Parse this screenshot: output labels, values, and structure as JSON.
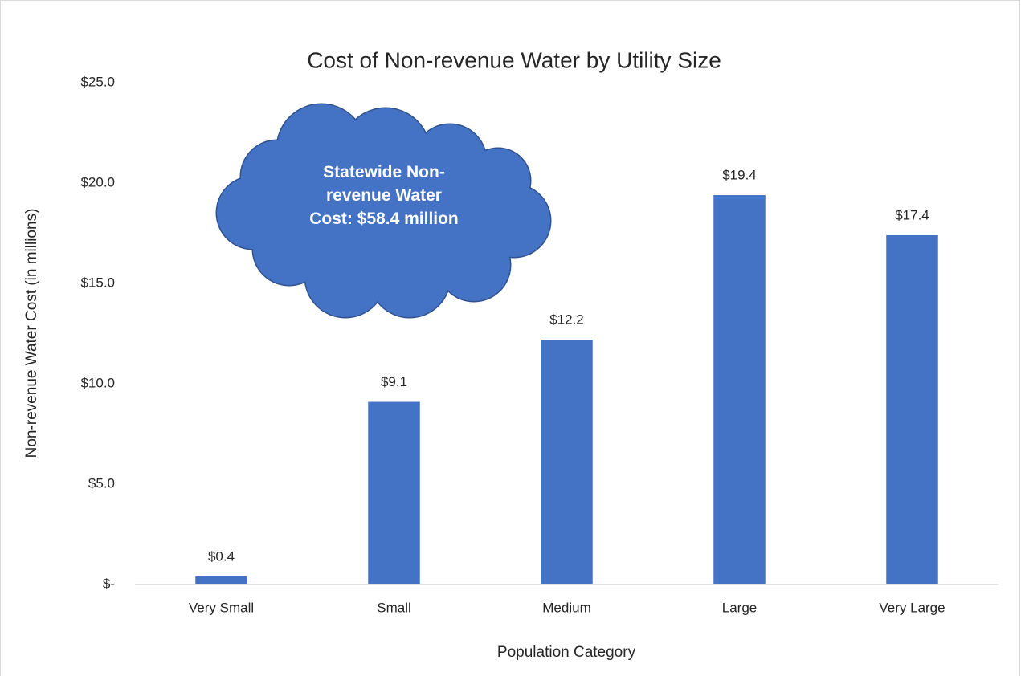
{
  "chart_data": {
    "type": "bar",
    "title": "Cost of Non-revenue Water by Utility Size",
    "x_label": "Population Category",
    "y_label": "Non-revenue Water Cost  (in millions)",
    "categories": [
      "Very Small",
      "Small",
      "Medium",
      "Large",
      "Very Large"
    ],
    "values": [
      0.4,
      9.1,
      12.2,
      19.4,
      17.4
    ],
    "value_labels": [
      "$0.4",
      "$9.1",
      "$12.2",
      "$19.4",
      "$17.4"
    ],
    "color": "#4472c4",
    "ylim": [
      0,
      25
    ],
    "yticks": [
      {
        "value": 0,
        "label": "$-"
      },
      {
        "value": 5,
        "label": "$5.0"
      },
      {
        "value": 10,
        "label": "$10.0"
      },
      {
        "value": 15,
        "label": "$15.0"
      },
      {
        "value": 20,
        "label": "$20.0"
      },
      {
        "value": 25,
        "label": "$25.0"
      }
    ],
    "grid": false,
    "annotation": "Statewide Non-revenue Water Cost: $58.4 million"
  }
}
